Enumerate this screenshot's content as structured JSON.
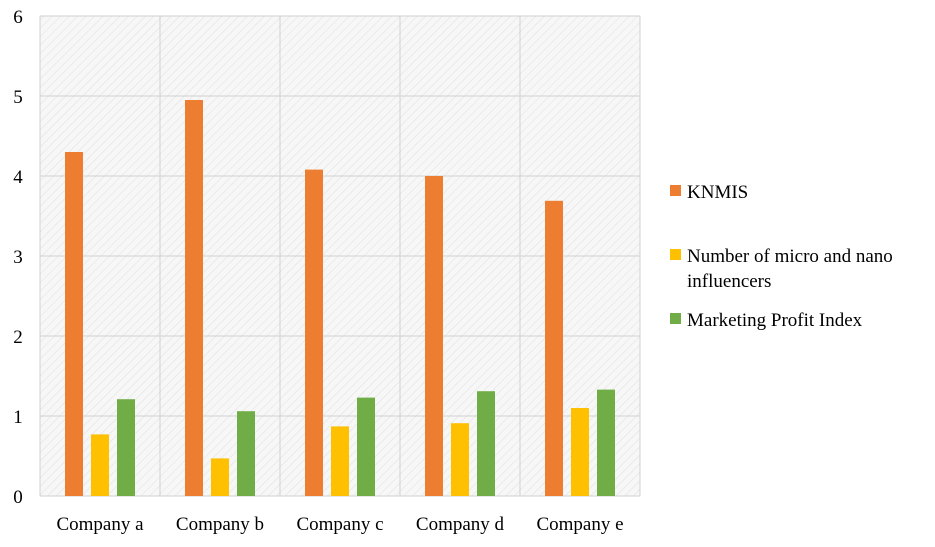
{
  "chart_data": {
    "type": "bar",
    "title": "",
    "xlabel": "",
    "ylabel": "",
    "categories": [
      "Company a",
      "Company b",
      "Company c",
      "Company d",
      "Company e"
    ],
    "series": [
      {
        "name": "KNMIS",
        "color": "#ED7D31",
        "values": [
          4.3,
          4.95,
          4.08,
          4.0,
          3.69
        ]
      },
      {
        "name": "Number of micro and nano influencers",
        "color": "#FFC000",
        "values": [
          0.77,
          0.47,
          0.87,
          0.91,
          1.1
        ]
      },
      {
        "name": "Marketing Profit Index",
        "color": "#70AD47",
        "values": [
          1.21,
          1.06,
          1.23,
          1.31,
          1.33
        ]
      }
    ],
    "ylim": [
      0,
      6
    ],
    "yticks": [
      "0",
      "1",
      "2",
      "3",
      "4",
      "5",
      "6"
    ],
    "grid": true,
    "plot_background": "hatched",
    "legend_position": "right"
  }
}
